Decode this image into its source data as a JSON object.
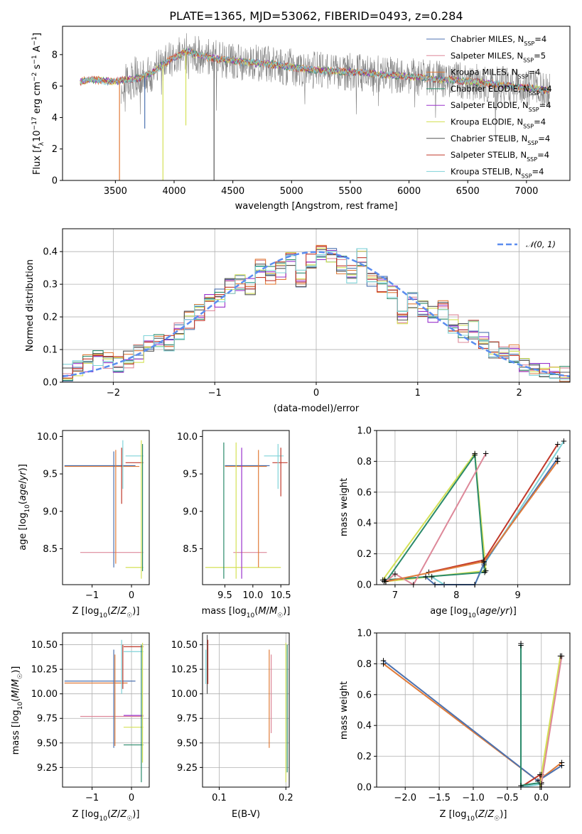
{
  "chart_data": [
    {
      "type": "line",
      "title": "PLATE=1365, MJD=53062, FIBERID=0493, z=0.284",
      "xlabel": "wavelength [Angstrom, rest frame]",
      "ylabel": "Flux [f_λ10^-17 erg cm^-2 s^-1 A^-1]",
      "xlim": [
        3050,
        7370
      ],
      "ylim": [
        0,
        9.8
      ],
      "xticks": [
        "3500",
        "4000",
        "4500",
        "5000",
        "5500",
        "6000",
        "6500",
        "7000"
      ],
      "yticks": [
        "0",
        "2",
        "4",
        "6",
        "8"
      ],
      "legend_position": "top-right",
      "data_range": [
        3200,
        7200
      ],
      "series": [
        {
          "name": "Chabrier MILES, N_SSP=4",
          "color": "#4c72b0"
        },
        {
          "name": "Salpeter MILES, N_SSP=5",
          "color": "#dd8899"
        },
        {
          "name": "Kroupa MILES, N_SSP=4",
          "color": "#e07b39"
        },
        {
          "name": "Chabrier ELODIE, N_SSP=4",
          "color": "#2a8a6a"
        },
        {
          "name": "Salpeter ELODIE, N_SSP=4",
          "color": "#9932cc"
        },
        {
          "name": "Kroupa ELODIE, N_SSP=4",
          "color": "#d4e157"
        },
        {
          "name": "Chabrier STELIB, N_SSP=4",
          "color": "#555555"
        },
        {
          "name": "Salpeter STELIB, N_SSP=4",
          "color": "#c0392b"
        },
        {
          "name": "Kroupa STELIB, N_SSP=4",
          "color": "#7fd3d8"
        }
      ],
      "continuum": [
        [
          3200,
          6.3
        ],
        [
          3300,
          6.4
        ],
        [
          3500,
          6.3
        ],
        [
          3700,
          6.5
        ],
        [
          3800,
          6.8
        ],
        [
          3950,
          7.6
        ],
        [
          4100,
          8.2
        ],
        [
          4300,
          7.8
        ],
        [
          4500,
          7.6
        ],
        [
          4800,
          7.4
        ],
        [
          5000,
          7.2
        ],
        [
          5200,
          7.0
        ],
        [
          5500,
          6.9
        ],
        [
          6000,
          6.6
        ],
        [
          6500,
          6.3
        ],
        [
          7000,
          5.9
        ],
        [
          7200,
          5.7
        ]
      ]
    },
    {
      "type": "line",
      "xlabel": "(data-model)/error",
      "ylabel": "Normed distribution",
      "xlim": [
        -2.5,
        2.5
      ],
      "ylim": [
        0,
        0.47
      ],
      "xticks": [
        "−2",
        "−1",
        "0",
        "1",
        "2"
      ],
      "yticks": [
        "0.0",
        "0.1",
        "0.2",
        "0.3",
        "0.4"
      ],
      "grid": true,
      "legend_position": "top-right",
      "legend": "𝒩(0, 1)",
      "normal_curve_color": "#5b8def",
      "hist_bins": [
        -2.5,
        -2.4,
        -2.3,
        -2.2,
        -2.1,
        -2.0,
        -1.9,
        -1.8,
        -1.7,
        -1.6,
        -1.5,
        -1.4,
        -1.3,
        -1.2,
        -1.1,
        -1.0,
        -0.9,
        -0.8,
        -0.7,
        -0.6,
        -0.5,
        -0.4,
        -0.3,
        -0.2,
        -0.1,
        0.0,
        0.1,
        0.2,
        0.3,
        0.4,
        0.5,
        0.6,
        0.7,
        0.8,
        0.9,
        1.0,
        1.1,
        1.2,
        1.3,
        1.4,
        1.5,
        1.6,
        1.7,
        1.8,
        1.9,
        2.0,
        2.1,
        2.2,
        2.3,
        2.4
      ],
      "hist_values": [
        0.03,
        0.04,
        0.06,
        0.08,
        0.07,
        0.06,
        0.07,
        0.09,
        0.12,
        0.13,
        0.12,
        0.16,
        0.19,
        0.21,
        0.24,
        0.26,
        0.3,
        0.31,
        0.29,
        0.35,
        0.33,
        0.34,
        0.38,
        0.32,
        0.37,
        0.4,
        0.39,
        0.36,
        0.33,
        0.38,
        0.32,
        0.3,
        0.27,
        0.2,
        0.25,
        0.23,
        0.21,
        0.22,
        0.18,
        0.15,
        0.16,
        0.13,
        0.1,
        0.08,
        0.09,
        0.06,
        0.05,
        0.04,
        0.04,
        0.03
      ]
    },
    {
      "type": "scatter",
      "xlabel": "Z [log10(Z/Z☉)]",
      "ylabel": "age  [log10(age/yr)]",
      "xlim": [
        -1.75,
        0.45
      ],
      "ylim": [
        8.02,
        10.08
      ],
      "xticks": [
        "−1",
        "0"
      ],
      "yticks": [
        "8.5",
        "9.0",
        "9.5",
        "10.0"
      ]
    },
    {
      "type": "scatter",
      "xlabel": "mass [log10(M/M☉)]",
      "xlim": [
        9.1,
        10.65
      ],
      "ylim": [
        8.02,
        10.08
      ],
      "xticks": [
        "9.5",
        "10.0",
        "10.5"
      ],
      "yticks": [
        "8.5",
        "9.0",
        "9.5",
        "10.0"
      ]
    },
    {
      "type": "line",
      "xlabel": "age  [log10(age/yr)]",
      "ylabel": "mass weight",
      "xlim": [
        6.7,
        9.85
      ],
      "ylim": [
        0,
        1.0
      ],
      "xticks": [
        "7",
        "8",
        "9"
      ],
      "yticks": [
        "0.0",
        "0.2",
        "0.4",
        "0.6",
        "0.8",
        "1.0"
      ],
      "grid": true
    },
    {
      "type": "scatter",
      "xlabel": "Z [log10(Z/Z☉)]",
      "ylabel": "mass [log10(M/M☉)]",
      "xlim": [
        -1.75,
        0.45
      ],
      "ylim": [
        9.05,
        10.62
      ],
      "xticks": [
        "−1",
        "0"
      ],
      "yticks": [
        "9.25",
        "9.50",
        "9.75",
        "10.00",
        "10.25",
        "10.50"
      ],
      "grid": true
    },
    {
      "type": "scatter",
      "xlabel": "E(B-V)",
      "xlim": [
        0.075,
        0.205
      ],
      "ylim": [
        9.05,
        10.62
      ],
      "xticks": [
        "0.1",
        "0.2"
      ],
      "yticks": [
        "9.25",
        "9.50",
        "9.75",
        "10.00",
        "10.25",
        "10.50"
      ],
      "grid": true
    },
    {
      "type": "line",
      "xlabel": "Z [log10(Z/Z☉)]",
      "ylabel": "mass weight",
      "xlim": [
        -2.42,
        0.42
      ],
      "ylim": [
        0,
        1.0
      ],
      "xticks": [
        "−2.0",
        "−1.5",
        "−1.0",
        "−0.5",
        "0.0"
      ],
      "yticks": [
        "0.0",
        "0.2",
        "0.4",
        "0.6",
        "0.8",
        "1.0"
      ],
      "grid": true
    }
  ]
}
